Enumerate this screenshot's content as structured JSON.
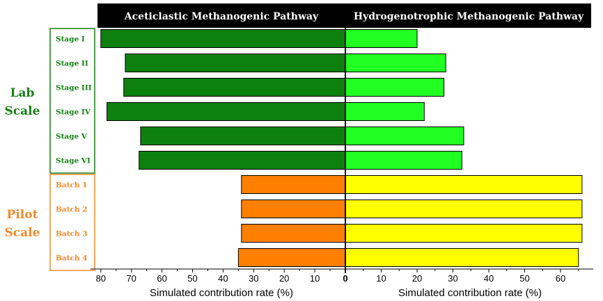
{
  "chart_data": {
    "type": "bar",
    "orientation": "horizontal-diverging",
    "panels": {
      "left": {
        "title": "Aceticlastic Methanogenic Pathway",
        "xlabel": "Simulated contribution rate (%)",
        "xlim": [
          0,
          82
        ],
        "ticks": [
          0,
          10,
          20,
          30,
          40,
          50,
          60,
          70,
          80
        ]
      },
      "right": {
        "title": "Hydrogenotrophic Methanogenic Pathway",
        "xlabel": "Simulated contribution rate (%)",
        "xlim": [
          0,
          68
        ],
        "ticks": [
          0,
          10,
          20,
          30,
          40,
          50,
          60
        ]
      }
    },
    "groups": [
      {
        "label_lines": [
          "Lab",
          "Scale"
        ],
        "color": "#157f15",
        "left_color": "#0e800e",
        "right_color": "#22ff22",
        "categories": [
          "Stage I",
          "Stage II",
          "Stage III",
          "Stage IV",
          "Stage V",
          "Stage VI"
        ],
        "left_values": [
          80,
          72,
          72.5,
          78,
          67,
          67.5
        ],
        "right_values": [
          20,
          28,
          27.5,
          22,
          33,
          32.5
        ]
      },
      {
        "label_lines": [
          "Pilot",
          "Scale"
        ],
        "color": "#f08a2c",
        "left_color": "#ff7f00",
        "right_color": "#ffff00",
        "categories": [
          "Batch 1",
          "Batch 2",
          "Batch 3",
          "Batch 4"
        ],
        "left_values": [
          34,
          34,
          34,
          35
        ],
        "right_values": [
          66,
          66,
          66,
          65
        ]
      }
    ]
  }
}
